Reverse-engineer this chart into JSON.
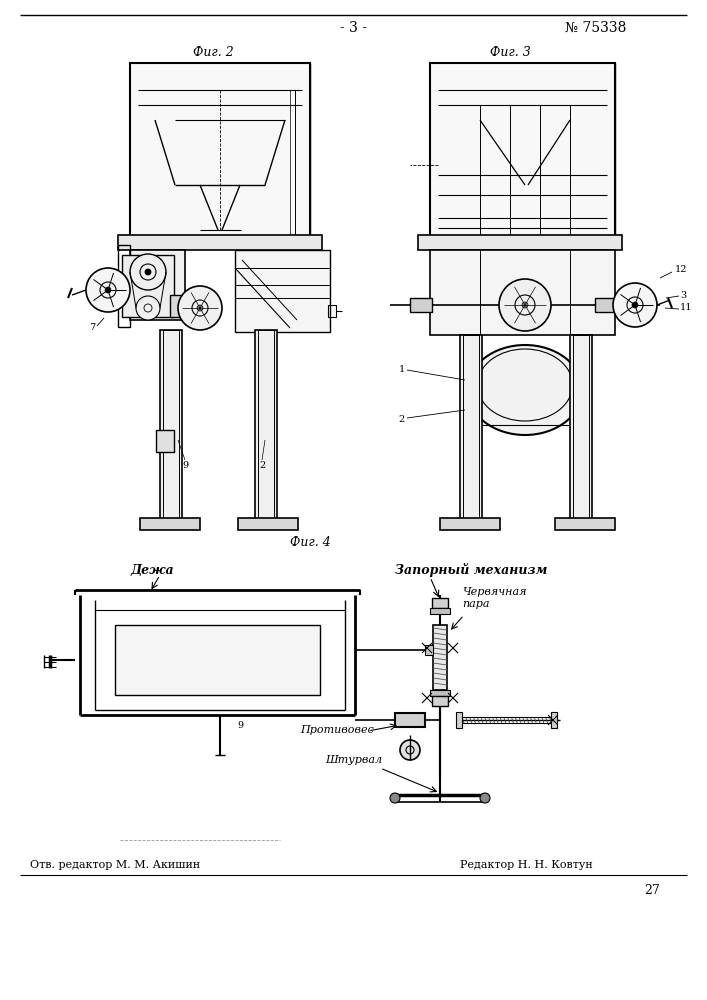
{
  "bg_color": "#ffffff",
  "page_num_text": "- 3 -",
  "patent_num_text": "№ 75338",
  "fig2_label": "Фиг. 2",
  "fig3_label": "Фиг. 3",
  "fig4_label": "Фиг. 4",
  "bottom_left": "Отв. редактор М. М. Акишин",
  "bottom_right": "Редактор Н. Н. Ковтун",
  "bottom_page": "27",
  "fig4_deja": "Дежа",
  "fig4_zapor": "Запорный механизм",
  "fig4_chervyak": "Червячная\nпара",
  "fig4_protivo": "Противовес",
  "fig4_shturval": "Штурвал",
  "label_7": "7",
  "label_9": "9",
  "label_2": "2",
  "label_1": "1",
  "label_3": "3",
  "label_11": "11",
  "label_12": "12"
}
